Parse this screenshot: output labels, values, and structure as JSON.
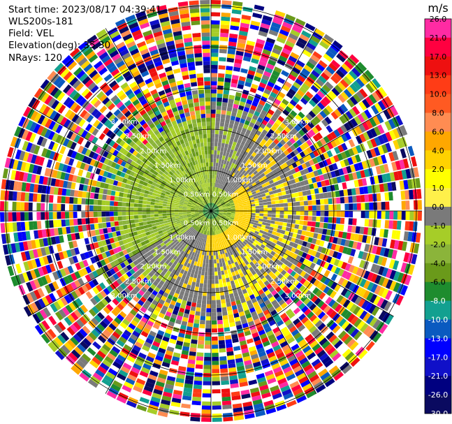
{
  "header": {
    "start_time": "Start time: 2023/08/17 04:39:41",
    "instrument": "WLS200s-181",
    "field": "Field: VEL",
    "elevation": "Elevation(deg): 35.30",
    "nrays": "NRays: 120"
  },
  "colorbar": {
    "unit": "m/s",
    "ticks": [
      "26.0",
      "21.0",
      "17.0",
      "13.0",
      "10.0",
      "8.0",
      "6.0",
      "4.0",
      "2.0",
      "1.0",
      "0.0",
      "-1.0",
      "-2.0",
      "-4.0",
      "-6.0",
      "-8.0",
      "-10.0",
      "-13.0",
      "-17.0",
      "-21.0",
      "-26.0",
      "-30.0"
    ],
    "colors": [
      "#ff2ba3",
      "#ff0040",
      "#ee1010",
      "#ff3c16",
      "#ff5a22",
      "#ff8c52",
      "#ffa700",
      "#ffd200",
      "#ffff00",
      "#fff04a",
      "#7a7a7a",
      "#a6cd28",
      "#8bb43a",
      "#6a9a1a",
      "#1e8c2e",
      "#12a090",
      "#0a5ac0",
      "#0000ff",
      "#1010c8",
      "#000080",
      "#0a0a60",
      "#4a0a6a"
    ]
  },
  "range_rings": {
    "labels": [
      "0.50km",
      "1.00km",
      "1.50km",
      "2.00km",
      "2.50km",
      "3.00km"
    ]
  }
}
